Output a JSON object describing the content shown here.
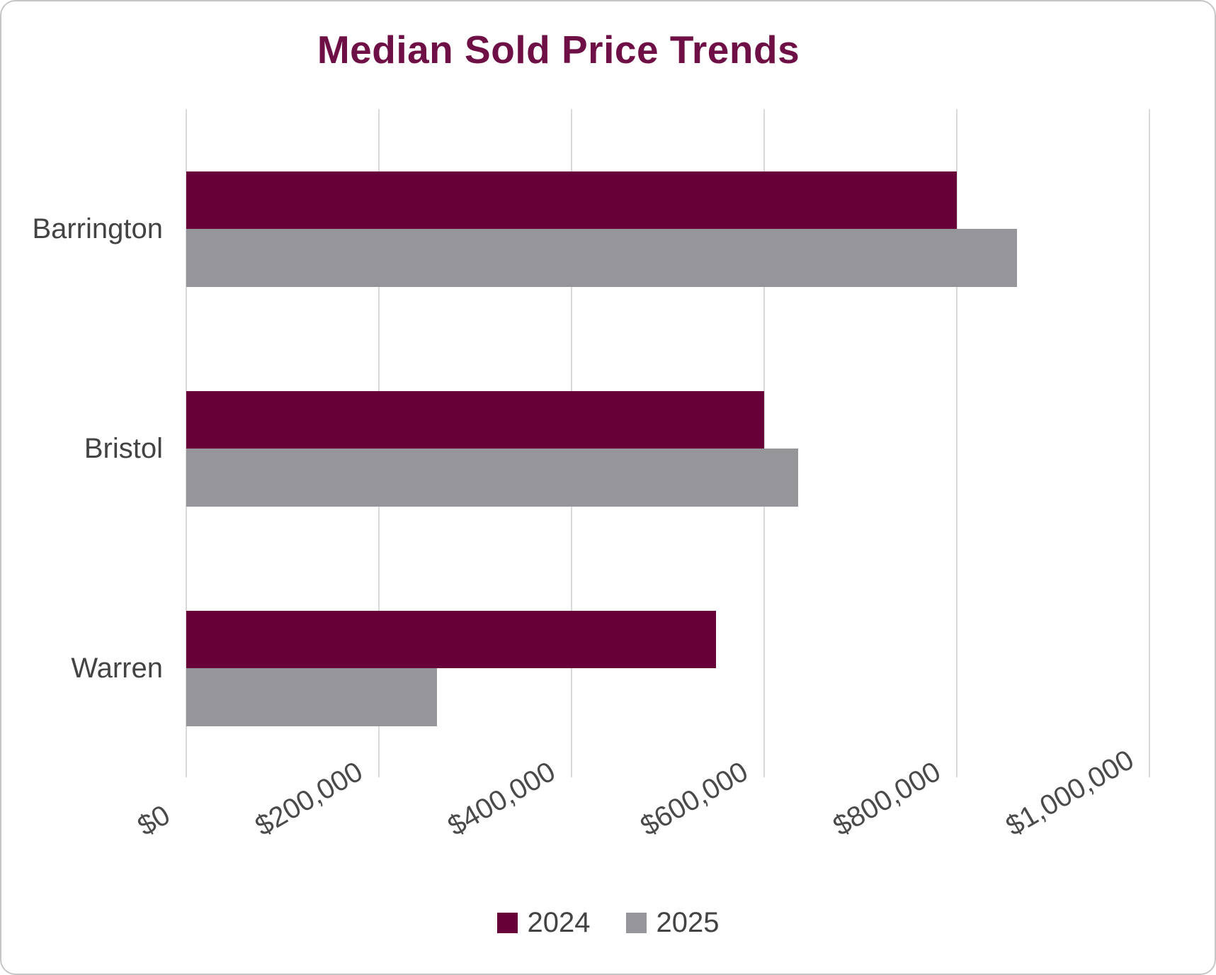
{
  "title": "Median Sold Price Trends",
  "chart_data": {
    "type": "bar",
    "orientation": "horizontal",
    "title": "Median Sold Price Trends",
    "categories": [
      "Barrington",
      "Bristol",
      "Warren"
    ],
    "series": [
      {
        "name": "2024",
        "color": "#670038",
        "values": [
          800000,
          600000,
          550000
        ]
      },
      {
        "name": "2025",
        "color": "#95959a",
        "values": [
          862500,
          635000,
          260000
        ]
      }
    ],
    "x_axis": {
      "min": 0,
      "max": 1000000,
      "tick_interval": 200000,
      "tick_labels": [
        "$0",
        "$200,000",
        "$400,000",
        "$600,000",
        "$800,000",
        "$1,000,000"
      ]
    },
    "legend": {
      "position": "bottom",
      "entries": [
        "2024",
        "2025"
      ]
    },
    "grid": true
  },
  "colors": {
    "title": "#6e1045",
    "text": "#434343",
    "gridline": "#d9d9d9",
    "series_2024": "#670038",
    "series_2025": "#95959a",
    "background": "#ffffff"
  }
}
